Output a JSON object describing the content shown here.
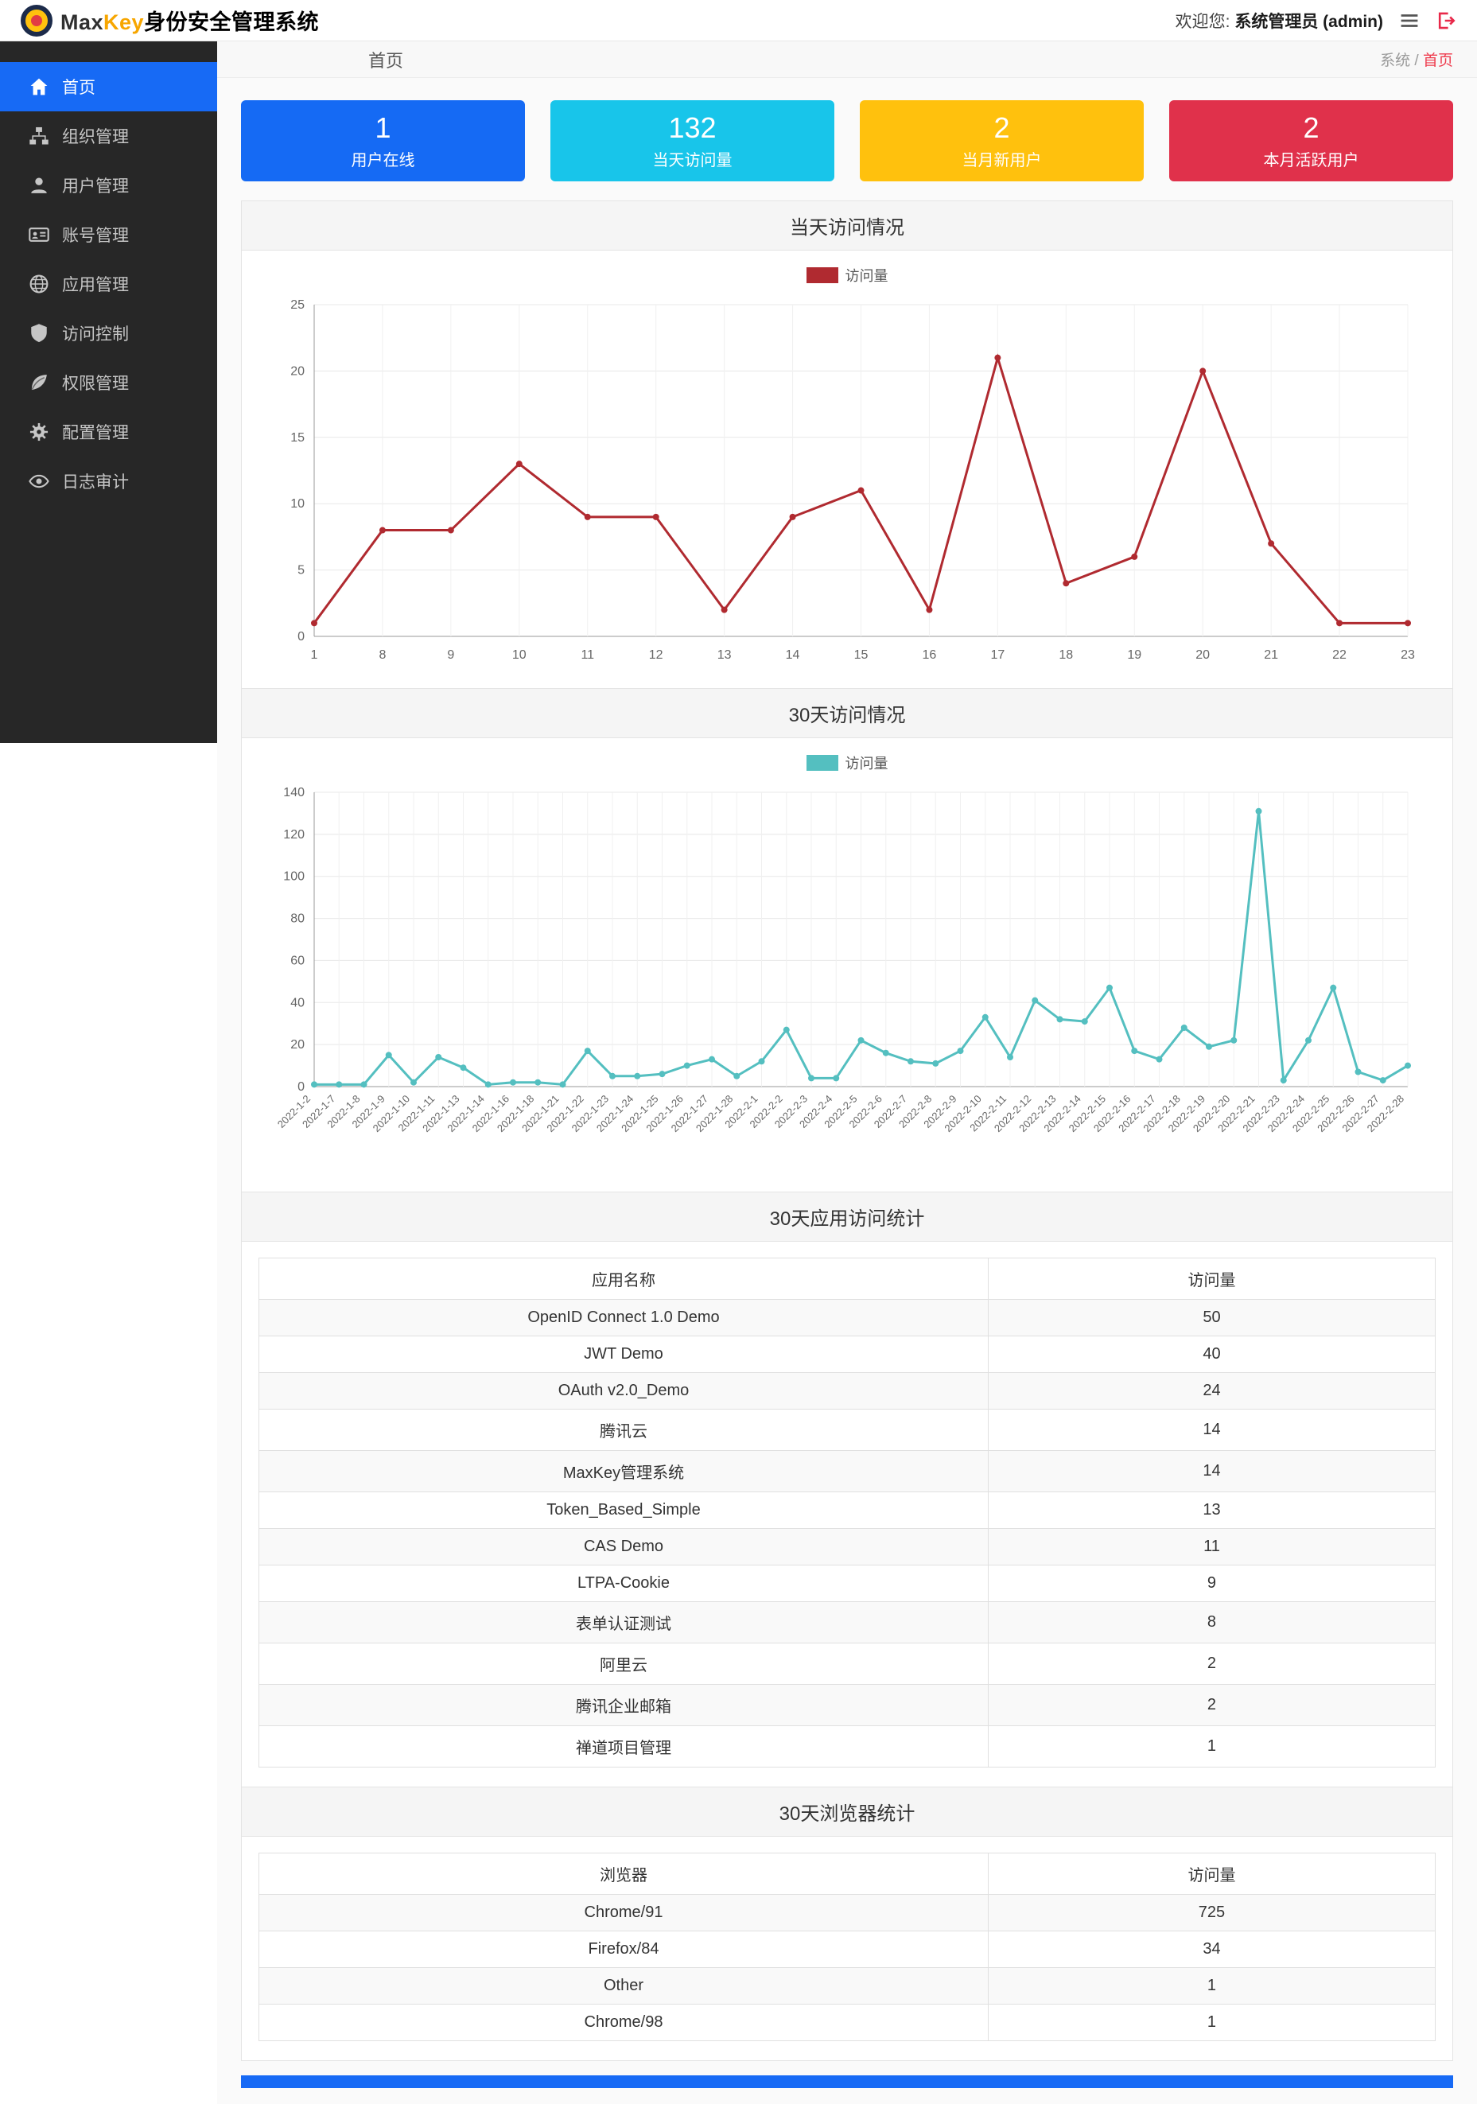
{
  "header": {
    "brand": {
      "part1": "Max",
      "part2": "Key",
      "part3": "身份安全管理系统"
    },
    "welcome_prefix": "欢迎您:",
    "welcome_user": "系统管理员 (admin)"
  },
  "sidebar": {
    "items": [
      {
        "label": "首页",
        "icon": "home-icon",
        "active": true
      },
      {
        "label": "组织管理",
        "icon": "sitemap-icon",
        "active": false
      },
      {
        "label": "用户管理",
        "icon": "user-icon",
        "active": false
      },
      {
        "label": "账号管理",
        "icon": "id-card-icon",
        "active": false
      },
      {
        "label": "应用管理",
        "icon": "globe-icon",
        "active": false
      },
      {
        "label": "访问控制",
        "icon": "shield-icon",
        "active": false
      },
      {
        "label": "权限管理",
        "icon": "leaf-icon",
        "active": false
      },
      {
        "label": "配置管理",
        "icon": "cogs-icon",
        "active": false
      },
      {
        "label": "日志审计",
        "icon": "eye-icon",
        "active": false
      }
    ]
  },
  "breadcrumb": {
    "title": "首页",
    "section": "系统",
    "separator": "/",
    "current": "首页"
  },
  "stats": [
    {
      "value": "1",
      "label": "用户在线",
      "color": "#156af4"
    },
    {
      "value": "132",
      "label": "当天访问量",
      "color": "#18c5ea"
    },
    {
      "value": "2",
      "label": "当月新用户",
      "color": "#ffc10d"
    },
    {
      "value": "2",
      "label": "本月活跃用户",
      "color": "#e0314b"
    }
  ],
  "chart_data": [
    {
      "type": "line",
      "title": "当天访问情况",
      "legend": "访问量",
      "legend_position": "top",
      "color": "#b02a30",
      "grid": true,
      "xlabel": "",
      "ylabel": "",
      "ylim": [
        0,
        25
      ],
      "ytick": 5,
      "x": [
        "1",
        "8",
        "9",
        "10",
        "11",
        "12",
        "13",
        "14",
        "15",
        "16",
        "17",
        "18",
        "19",
        "20",
        "21",
        "22",
        "23"
      ],
      "values": [
        1,
        8,
        8,
        13,
        9,
        9,
        2,
        9,
        11,
        2,
        21,
        4,
        6,
        20,
        7,
        1,
        1
      ]
    },
    {
      "type": "line",
      "title": "30天访问情况",
      "legend": "访问量",
      "legend_position": "top",
      "color": "#54bfc0",
      "grid": true,
      "xlabel": "",
      "ylabel": "",
      "ylim": [
        0,
        140
      ],
      "ytick": 20,
      "x": [
        "2022-1-2",
        "2022-1-7",
        "2022-1-8",
        "2022-1-9",
        "2022-1-10",
        "2022-1-11",
        "2022-1-13",
        "2022-1-14",
        "2022-1-16",
        "2022-1-18",
        "2022-1-21",
        "2022-1-22",
        "2022-1-23",
        "2022-1-24",
        "2022-1-25",
        "2022-1-26",
        "2022-1-27",
        "2022-1-28",
        "2022-2-1",
        "2022-2-2",
        "2022-2-3",
        "2022-2-4",
        "2022-2-5",
        "2022-2-6",
        "2022-2-7",
        "2022-2-8",
        "2022-2-9",
        "2022-2-10",
        "2022-2-11",
        "2022-2-12",
        "2022-2-13",
        "2022-2-14",
        "2022-2-15",
        "2022-2-16",
        "2022-2-17",
        "2022-2-18",
        "2022-2-19",
        "2022-2-20",
        "2022-2-21",
        "2022-2-23",
        "2022-2-24",
        "2022-2-25",
        "2022-2-26",
        "2022-2-27",
        "2022-2-28"
      ],
      "values": [
        1,
        1,
        1,
        15,
        2,
        14,
        9,
        1,
        2,
        2,
        1,
        17,
        5,
        5,
        6,
        10,
        13,
        5,
        12,
        27,
        4,
        4,
        22,
        16,
        12,
        11,
        17,
        33,
        14,
        41,
        32,
        31,
        47,
        17,
        13,
        28,
        19,
        22,
        131,
        3,
        22,
        47,
        7,
        3,
        10
      ]
    }
  ],
  "tables": [
    {
      "title": "30天应用访问统计",
      "columns": [
        "应用名称",
        "访问量"
      ],
      "rows": [
        [
          "OpenID Connect 1.0 Demo",
          "50"
        ],
        [
          "JWT Demo",
          "40"
        ],
        [
          "OAuth v2.0_Demo",
          "24"
        ],
        [
          "腾讯云",
          "14"
        ],
        [
          "MaxKey管理系统",
          "14"
        ],
        [
          "Token_Based_Simple",
          "13"
        ],
        [
          "CAS Demo",
          "11"
        ],
        [
          "LTPA-Cookie",
          "9"
        ],
        [
          "表单认证测试",
          "8"
        ],
        [
          "阿里云",
          "2"
        ],
        [
          "腾讯企业邮箱",
          "2"
        ],
        [
          "禅道项目管理",
          "1"
        ]
      ]
    },
    {
      "title": "30天浏览器统计",
      "columns": [
        "浏览器",
        "访问量"
      ],
      "rows": [
        [
          "Chrome/91",
          "725"
        ],
        [
          "Firefox/84",
          "34"
        ],
        [
          "Other",
          "1"
        ],
        [
          "Chrome/98",
          "1"
        ]
      ]
    }
  ]
}
